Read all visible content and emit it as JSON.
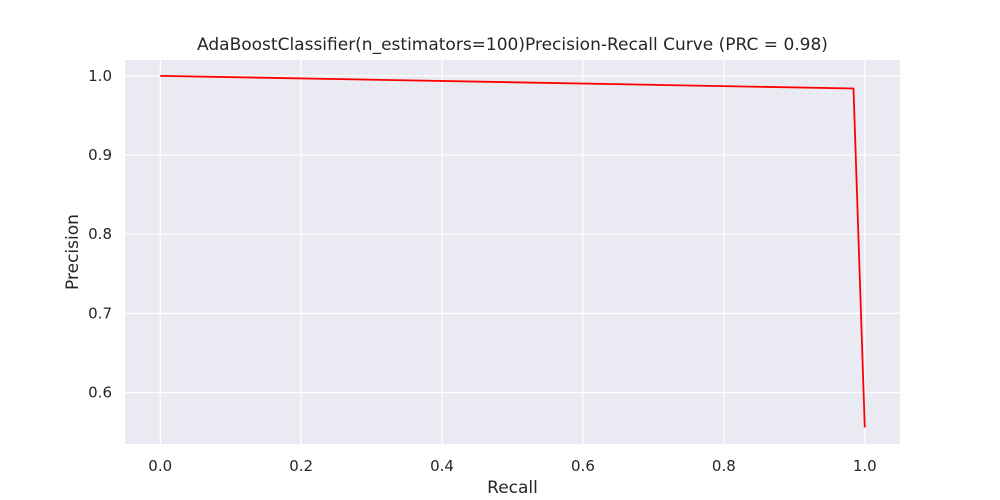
{
  "chart_data": {
    "type": "line",
    "title": "AdaBoostClassifier(n_estimators=100)Precision-Recall Curve (PRC = 0.98)",
    "xlabel": "Recall",
    "ylabel": "Precision",
    "xlim": [
      -0.05,
      1.05
    ],
    "ylim": [
      0.535,
      1.02
    ],
    "xticks": [
      0.0,
      0.2,
      0.4,
      0.6,
      0.8,
      1.0
    ],
    "xtick_labels": [
      "0.0",
      "0.2",
      "0.4",
      "0.6",
      "0.8",
      "1.0"
    ],
    "yticks": [
      0.6,
      0.7,
      0.8,
      0.9,
      1.0
    ],
    "ytick_labels": [
      "0.6",
      "0.7",
      "0.8",
      "0.9",
      "1.0"
    ],
    "grid": true,
    "series": [
      {
        "color": "#ff0000",
        "x": [
          0.0,
          0.984,
          1.0
        ],
        "y": [
          1.0,
          0.984,
          0.556
        ]
      }
    ],
    "colors": {
      "plot_background": "#eaeaf2",
      "grid": "#ffffff",
      "text": "#262626"
    }
  }
}
